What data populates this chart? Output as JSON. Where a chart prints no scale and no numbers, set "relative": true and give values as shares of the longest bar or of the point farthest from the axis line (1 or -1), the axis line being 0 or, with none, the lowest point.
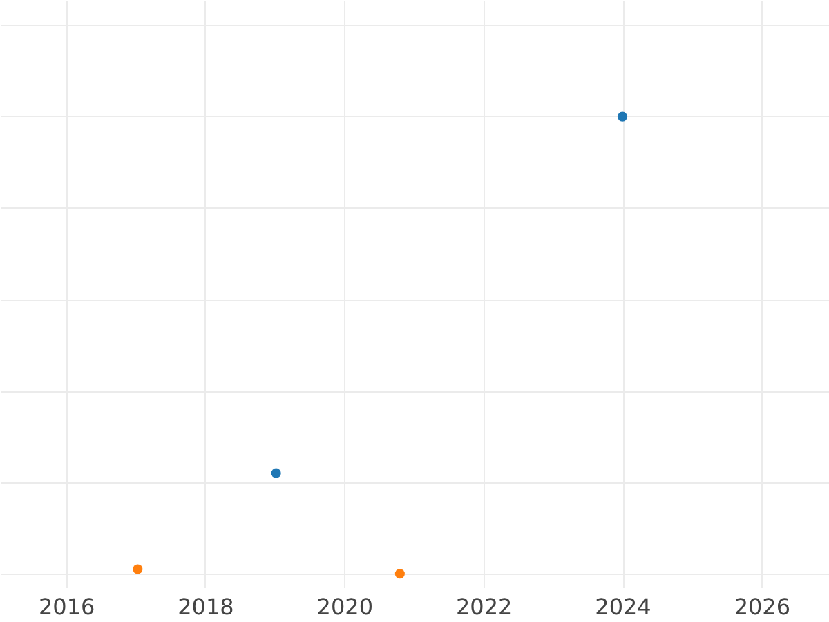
{
  "chart_data": {
    "type": "scatter",
    "relative": true,
    "xlim": [
      2015.05,
      2026.97
    ],
    "xticks": [
      2016,
      2018,
      2020,
      2022,
      2024,
      2026
    ],
    "grid": true,
    "tick_labels": "x",
    "marker": "circle",
    "series": [
      {
        "color": "#1f77b4",
        "x": [
          2019.02,
          2024
        ],
        "values": [
          0.22,
          1
        ]
      },
      {
        "color": "#ff7f0e",
        "x": [
          2017.03,
          2020.8
        ],
        "values": [
          0.01,
          0
        ]
      }
    ]
  }
}
